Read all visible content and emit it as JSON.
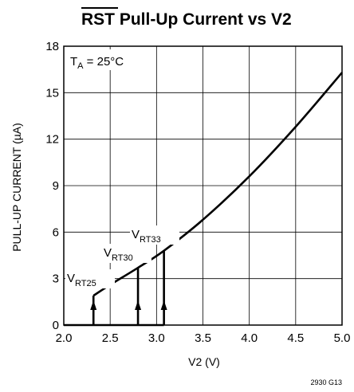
{
  "chart_data": {
    "type": "line",
    "title": {
      "signal": "RST",
      "rest": " Pull-Up Current vs V2"
    },
    "xlabel": "V2 (V)",
    "ylabel": "PULL-UP CURRENT (µA)",
    "xlim": [
      2.0,
      5.0
    ],
    "ylim": [
      0,
      18
    ],
    "xticks": [
      "2.0",
      "2.5",
      "3.0",
      "3.5",
      "4.0",
      "4.5",
      "5.0"
    ],
    "yticks": [
      "0",
      "3",
      "6",
      "9",
      "12",
      "15",
      "18"
    ],
    "grid": true,
    "condition": {
      "symbol": "T",
      "sub": "A",
      "value": " = 25°C"
    },
    "series": [
      {
        "x": [
          2.32,
          2.5,
          2.8,
          3.08,
          3.5,
          4.0,
          4.5,
          5.0
        ],
        "y": [
          1.9,
          2.6,
          3.7,
          4.8,
          6.8,
          9.6,
          12.8,
          16.3
        ]
      }
    ],
    "thresholds": [
      {
        "base": "V",
        "sub": "RT25",
        "x": 2.32,
        "y": 1.9
      },
      {
        "base": "V",
        "sub": "RT30",
        "x": 2.8,
        "y": 3.7
      },
      {
        "base": "V",
        "sub": "RT33",
        "x": 3.08,
        "y": 4.8
      }
    ],
    "figure_code": "2930 G13"
  }
}
